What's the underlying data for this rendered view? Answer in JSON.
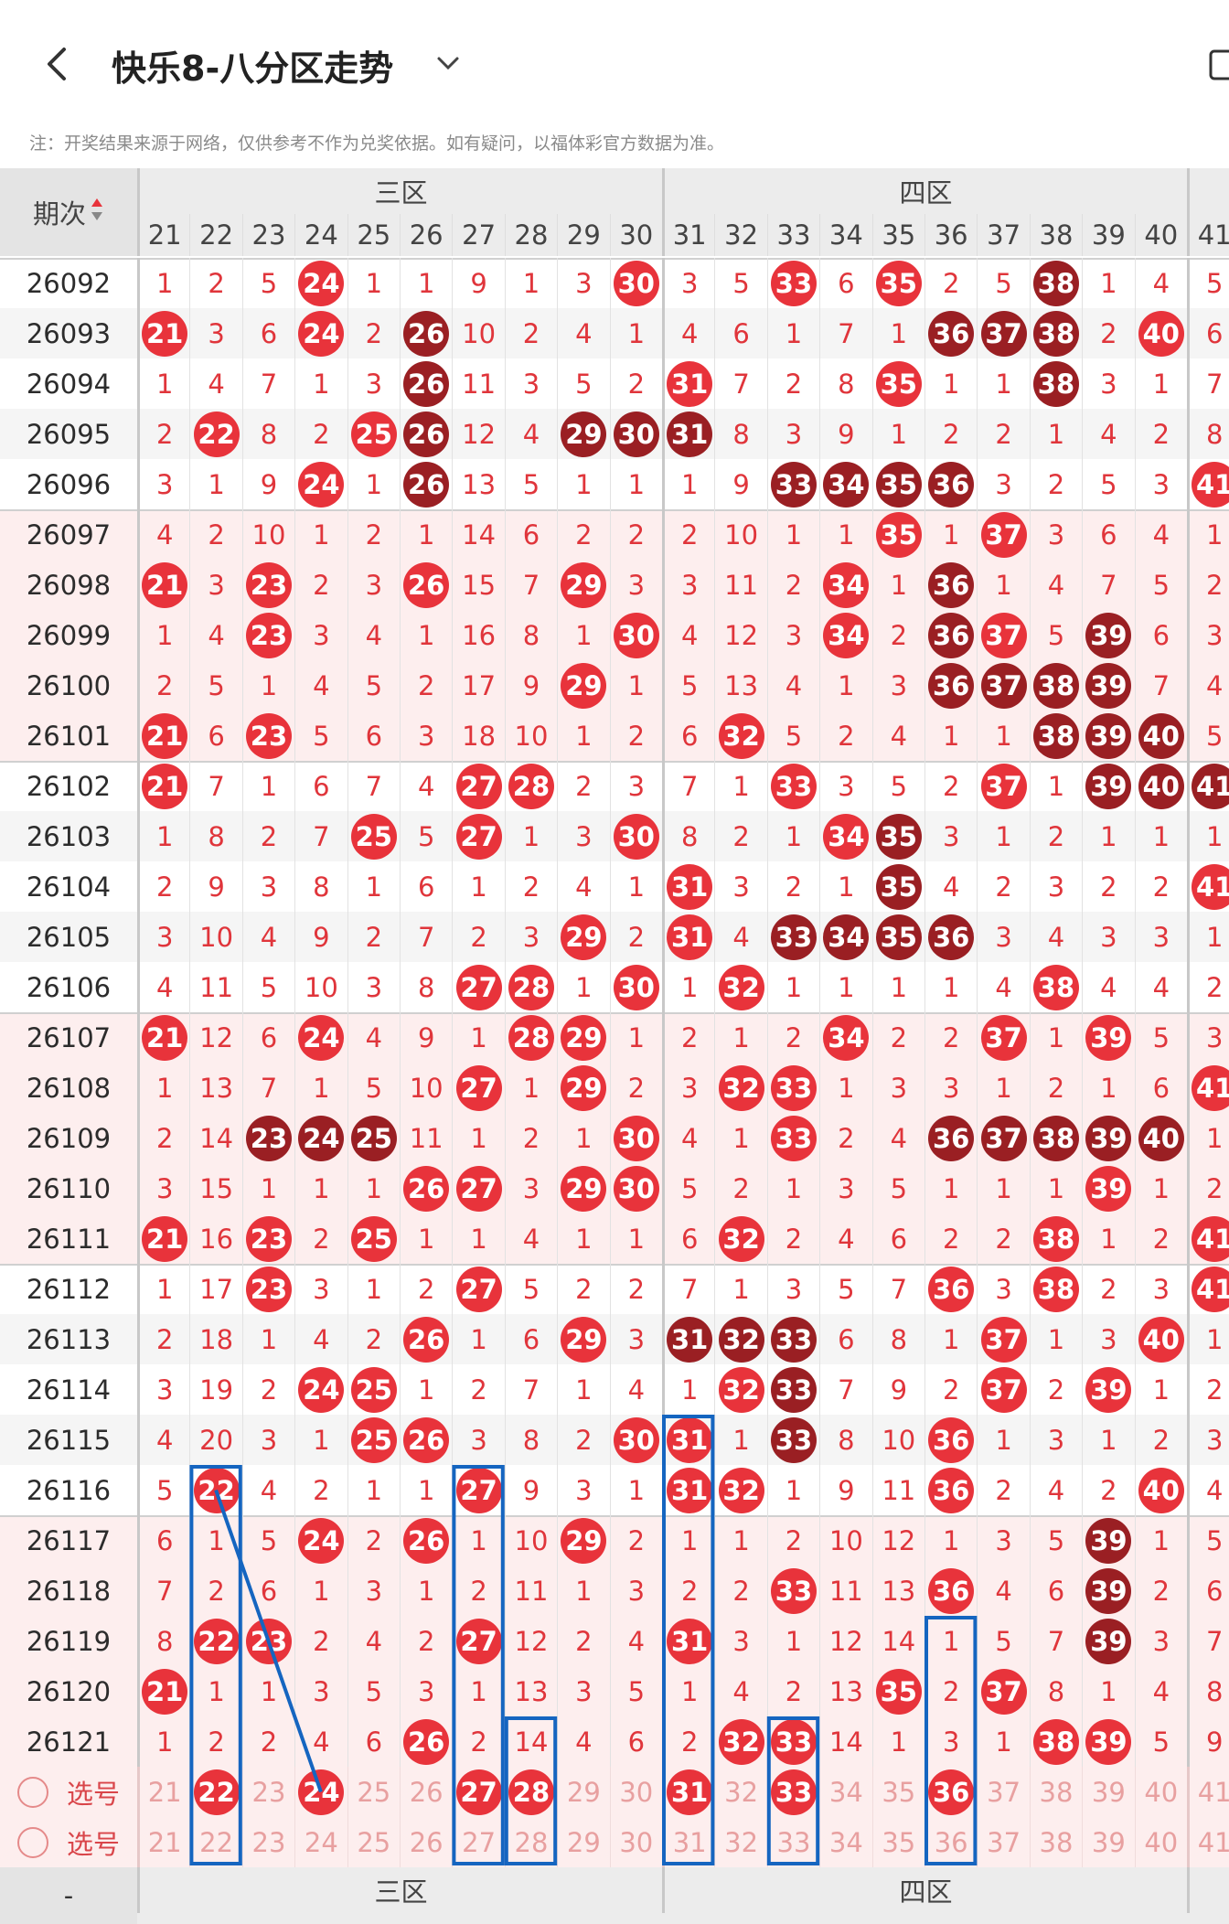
{
  "header": {
    "title": "快乐8-八分区走势",
    "notice": "注：开奖结果来源于网络，仅供参考不作为兑奖依据。如有疑问，以福体彩官方数据为准。"
  },
  "table": {
    "period_header": "期次",
    "zones": [
      {
        "label": "三区"
      },
      {
        "label": "四区"
      }
    ],
    "columns": [
      "21",
      "22",
      "23",
      "24",
      "25",
      "26",
      "27",
      "28",
      "29",
      "30",
      "31",
      "32",
      "33",
      "34",
      "35",
      "36",
      "37",
      "38",
      "39",
      "40",
      "41"
    ],
    "rows": [
      {
        "period": "26092",
        "cells": [
          "1",
          "2",
          "5",
          "@24",
          "1",
          "1",
          "9",
          "1",
          "3",
          "@30",
          "3",
          "5",
          "@33",
          "6",
          "@35",
          "2",
          "5",
          "#38",
          "1",
          "4",
          "5"
        ]
      },
      {
        "period": "26093",
        "cells": [
          "@21",
          "3",
          "6",
          "@24",
          "2",
          "#26",
          "10",
          "2",
          "4",
          "1",
          "4",
          "6",
          "1",
          "7",
          "1",
          "#36",
          "#37",
          "#38",
          "2",
          "@40",
          "6"
        ]
      },
      {
        "period": "26094",
        "cells": [
          "1",
          "4",
          "7",
          "1",
          "3",
          "#26",
          "11",
          "3",
          "5",
          "2",
          "@31",
          "7",
          "2",
          "8",
          "@35",
          "1",
          "1",
          "#38",
          "3",
          "1",
          "7"
        ]
      },
      {
        "period": "26095",
        "cells": [
          "2",
          "@22",
          "8",
          "2",
          "@25",
          "#26",
          "12",
          "4",
          "#29",
          "#30",
          "#31",
          "8",
          "3",
          "9",
          "1",
          "2",
          "2",
          "1",
          "4",
          "2",
          "8"
        ]
      },
      {
        "period": "26096",
        "cells": [
          "3",
          "1",
          "9",
          "@24",
          "1",
          "#26",
          "13",
          "5",
          "1",
          "1",
          "1",
          "9",
          "#33",
          "#34",
          "#35",
          "#36",
          "3",
          "2",
          "5",
          "3",
          "@41"
        ]
      },
      {
        "period": "26097",
        "cells": [
          "4",
          "2",
          "10",
          "1",
          "2",
          "1",
          "14",
          "6",
          "2",
          "2",
          "2",
          "10",
          "1",
          "1",
          "@35",
          "1",
          "@37",
          "3",
          "6",
          "4",
          "1"
        ]
      },
      {
        "period": "26098",
        "cells": [
          "@21",
          "3",
          "@23",
          "2",
          "3",
          "@26",
          "15",
          "7",
          "@29",
          "3",
          "3",
          "11",
          "2",
          "@34",
          "1",
          "#36",
          "1",
          "4",
          "7",
          "5",
          "2"
        ]
      },
      {
        "period": "26099",
        "cells": [
          "1",
          "4",
          "@23",
          "3",
          "4",
          "1",
          "16",
          "8",
          "1",
          "@30",
          "4",
          "12",
          "3",
          "@34",
          "2",
          "#36",
          "@37",
          "5",
          "#39",
          "6",
          "3"
        ]
      },
      {
        "period": "26100",
        "cells": [
          "2",
          "5",
          "1",
          "4",
          "5",
          "2",
          "17",
          "9",
          "@29",
          "1",
          "5",
          "13",
          "4",
          "1",
          "3",
          "#36",
          "#37",
          "#38",
          "#39",
          "7",
          "4"
        ]
      },
      {
        "period": "26101",
        "cells": [
          "@21",
          "6",
          "@23",
          "5",
          "6",
          "3",
          "18",
          "10",
          "1",
          "2",
          "6",
          "@32",
          "5",
          "2",
          "4",
          "1",
          "1",
          "#38",
          "#39",
          "#40",
          "5"
        ]
      },
      {
        "period": "26102",
        "cells": [
          "@21",
          "7",
          "1",
          "6",
          "7",
          "4",
          "@27",
          "@28",
          "2",
          "3",
          "7",
          "1",
          "@33",
          "3",
          "5",
          "2",
          "@37",
          "1",
          "#39",
          "#40",
          "#41"
        ]
      },
      {
        "period": "26103",
        "cells": [
          "1",
          "8",
          "2",
          "7",
          "@25",
          "5",
          "@27",
          "1",
          "3",
          "@30",
          "8",
          "2",
          "1",
          "@34",
          "#35",
          "3",
          "1",
          "2",
          "1",
          "1",
          "1"
        ]
      },
      {
        "period": "26104",
        "cells": [
          "2",
          "9",
          "3",
          "8",
          "1",
          "6",
          "1",
          "2",
          "4",
          "1",
          "@31",
          "3",
          "2",
          "1",
          "#35",
          "4",
          "2",
          "3",
          "2",
          "2",
          "@41"
        ]
      },
      {
        "period": "26105",
        "cells": [
          "3",
          "10",
          "4",
          "9",
          "2",
          "7",
          "2",
          "3",
          "@29",
          "2",
          "@31",
          "4",
          "#33",
          "#34",
          "#35",
          "#36",
          "3",
          "4",
          "3",
          "3",
          "1"
        ]
      },
      {
        "period": "26106",
        "cells": [
          "4",
          "11",
          "5",
          "10",
          "3",
          "8",
          "@27",
          "@28",
          "1",
          "@30",
          "1",
          "@32",
          "1",
          "1",
          "1",
          "1",
          "4",
          "@38",
          "4",
          "4",
          "2"
        ]
      },
      {
        "period": "26107",
        "cells": [
          "@21",
          "12",
          "6",
          "@24",
          "4",
          "9",
          "1",
          "@28",
          "@29",
          "1",
          "2",
          "1",
          "2",
          "@34",
          "2",
          "2",
          "@37",
          "1",
          "@39",
          "5",
          "3"
        ]
      },
      {
        "period": "26108",
        "cells": [
          "1",
          "13",
          "7",
          "1",
          "5",
          "10",
          "@27",
          "1",
          "@29",
          "2",
          "3",
          "@32",
          "@33",
          "1",
          "3",
          "3",
          "1",
          "2",
          "1",
          "6",
          "@41"
        ]
      },
      {
        "period": "26109",
        "cells": [
          "2",
          "14",
          "#23",
          "#24",
          "#25",
          "11",
          "1",
          "2",
          "1",
          "@30",
          "4",
          "1",
          "@33",
          "2",
          "4",
          "#36",
          "#37",
          "#38",
          "#39",
          "#40",
          "1"
        ]
      },
      {
        "period": "26110",
        "cells": [
          "3",
          "15",
          "1",
          "1",
          "1",
          "@26",
          "@27",
          "3",
          "@29",
          "@30",
          "5",
          "2",
          "1",
          "3",
          "5",
          "1",
          "1",
          "1",
          "@39",
          "1",
          "2"
        ]
      },
      {
        "period": "26111",
        "cells": [
          "@21",
          "16",
          "@23",
          "2",
          "@25",
          "1",
          "1",
          "4",
          "1",
          "1",
          "6",
          "@32",
          "2",
          "4",
          "6",
          "2",
          "2",
          "@38",
          "1",
          "2",
          "@41"
        ]
      },
      {
        "period": "26112",
        "cells": [
          "1",
          "17",
          "@23",
          "3",
          "1",
          "2",
          "@27",
          "5",
          "2",
          "2",
          "7",
          "1",
          "3",
          "5",
          "7",
          "@36",
          "3",
          "@38",
          "2",
          "3",
          "@41"
        ]
      },
      {
        "period": "26113",
        "cells": [
          "2",
          "18",
          "1",
          "4",
          "2",
          "@26",
          "1",
          "6",
          "@29",
          "3",
          "#31",
          "#32",
          "#33",
          "6",
          "8",
          "1",
          "@37",
          "1",
          "3",
          "@40",
          "1"
        ]
      },
      {
        "period": "26114",
        "cells": [
          "3",
          "19",
          "2",
          "@24",
          "@25",
          "1",
          "2",
          "7",
          "1",
          "4",
          "1",
          "@32",
          "#33",
          "7",
          "9",
          "2",
          "@37",
          "2",
          "@39",
          "1",
          "2"
        ]
      },
      {
        "period": "26115",
        "cells": [
          "4",
          "20",
          "3",
          "1",
          "@25",
          "@26",
          "3",
          "8",
          "2",
          "@30",
          "@31",
          "1",
          "#33",
          "8",
          "10",
          "@36",
          "1",
          "3",
          "1",
          "2",
          "3"
        ]
      },
      {
        "period": "26116",
        "cells": [
          "5",
          "@22",
          "4",
          "2",
          "1",
          "1",
          "@27",
          "9",
          "3",
          "1",
          "@31",
          "@32",
          "1",
          "9",
          "11",
          "@36",
          "2",
          "4",
          "2",
          "@40",
          "4"
        ]
      },
      {
        "period": "26117",
        "cells": [
          "6",
          "1",
          "5",
          "@24",
          "2",
          "@26",
          "1",
          "10",
          "@29",
          "2",
          "1",
          "1",
          "2",
          "10",
          "12",
          "1",
          "3",
          "5",
          "#39",
          "1",
          "5"
        ]
      },
      {
        "period": "26118",
        "cells": [
          "7",
          "2",
          "6",
          "1",
          "3",
          "1",
          "2",
          "11",
          "1",
          "3",
          "2",
          "2",
          "@33",
          "11",
          "13",
          "@36",
          "4",
          "6",
          "#39",
          "2",
          "6"
        ]
      },
      {
        "period": "26119",
        "cells": [
          "8",
          "@22",
          "@23",
          "2",
          "4",
          "2",
          "@27",
          "12",
          "2",
          "4",
          "@31",
          "3",
          "1",
          "12",
          "14",
          "1",
          "5",
          "7",
          "#39",
          "3",
          "7"
        ]
      },
      {
        "period": "26120",
        "cells": [
          "@21",
          "1",
          "1",
          "3",
          "5",
          "3",
          "1",
          "13",
          "3",
          "5",
          "1",
          "4",
          "2",
          "13",
          "@35",
          "2",
          "@37",
          "8",
          "1",
          "4",
          "8"
        ]
      },
      {
        "period": "26121",
        "cells": [
          "1",
          "2",
          "2",
          "4",
          "6",
          "@26",
          "2",
          "14",
          "4",
          "6",
          "2",
          "@32",
          "@33",
          "14",
          "1",
          "3",
          "1",
          "@38",
          "@39",
          "5",
          "9"
        ]
      }
    ],
    "pick_rows": [
      {
        "label": "选号",
        "balls": [
          "22",
          "24",
          "27",
          "28",
          "31",
          "33",
          "36"
        ]
      },
      {
        "label": "选号",
        "balls": []
      }
    ],
    "footer_dash": "-"
  },
  "colors": {
    "accent_red": "#e8333b",
    "dark_red": "#9a1f23",
    "annotation_blue": "#1565c0",
    "stripe": "#f5f5f5",
    "alt_stripe": "#fdeeee"
  }
}
